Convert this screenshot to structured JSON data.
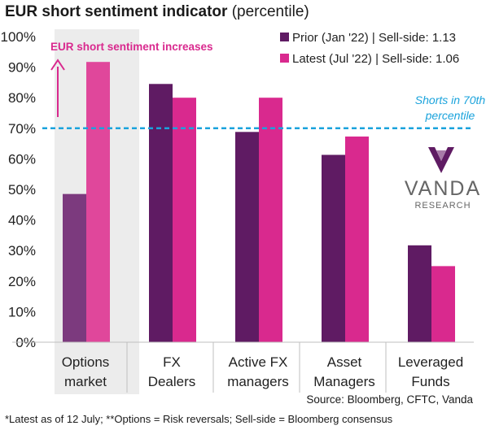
{
  "header": {
    "title_bold": "EUR short sentiment indicator",
    "title_light": "(percentile)"
  },
  "chart_data": {
    "type": "bar",
    "categories": [
      [
        "Options",
        "market"
      ],
      [
        "FX",
        "Dealers"
      ],
      [
        "Active FX",
        "managers"
      ],
      [
        "Asset",
        "Managers"
      ],
      [
        "Leveraged",
        "Funds"
      ]
    ],
    "series": [
      {
        "name": "Prior (Jan '22) | Sell-side: 1.13",
        "values": [
          48.5,
          84.5,
          68.8,
          61.3,
          31.7
        ],
        "color": "#5f1b63"
      },
      {
        "name": "Latest (Jul '22) | Sell-side: 1.06",
        "values": [
          91.7,
          80.0,
          80.0,
          67.3,
          24.9
        ],
        "color": "#d9298e"
      }
    ],
    "options_series_colors": [
      "#7c3a7e",
      "#e0479b"
    ],
    "ylim": [
      0,
      100
    ],
    "yticks": [
      "0%",
      "10%",
      "20%",
      "30%",
      "40%",
      "50%",
      "60%",
      "70%",
      "80%",
      "90%",
      "100%"
    ],
    "reference_line": {
      "value": 70,
      "label": [
        "Shorts in 70th",
        "percentile"
      ],
      "color": "#1aa3dc"
    },
    "annotation": {
      "text": "EUR short sentiment increases",
      "color": "#d9298e"
    },
    "highlight_category": 0,
    "highlight_color": "#ececec",
    "legend_position": "top-right",
    "grid": false
  },
  "brand": {
    "name": "VANDA",
    "sub": "RESEARCH",
    "mark_color": "#5f1b63",
    "text_color": "#666666"
  },
  "footer": {
    "source": "Source: Bloomberg, CFTC, Vanda",
    "note": "*Latest as of 12 July; **Options = Risk reversals; Sell-side = Bloomberg consensus"
  }
}
